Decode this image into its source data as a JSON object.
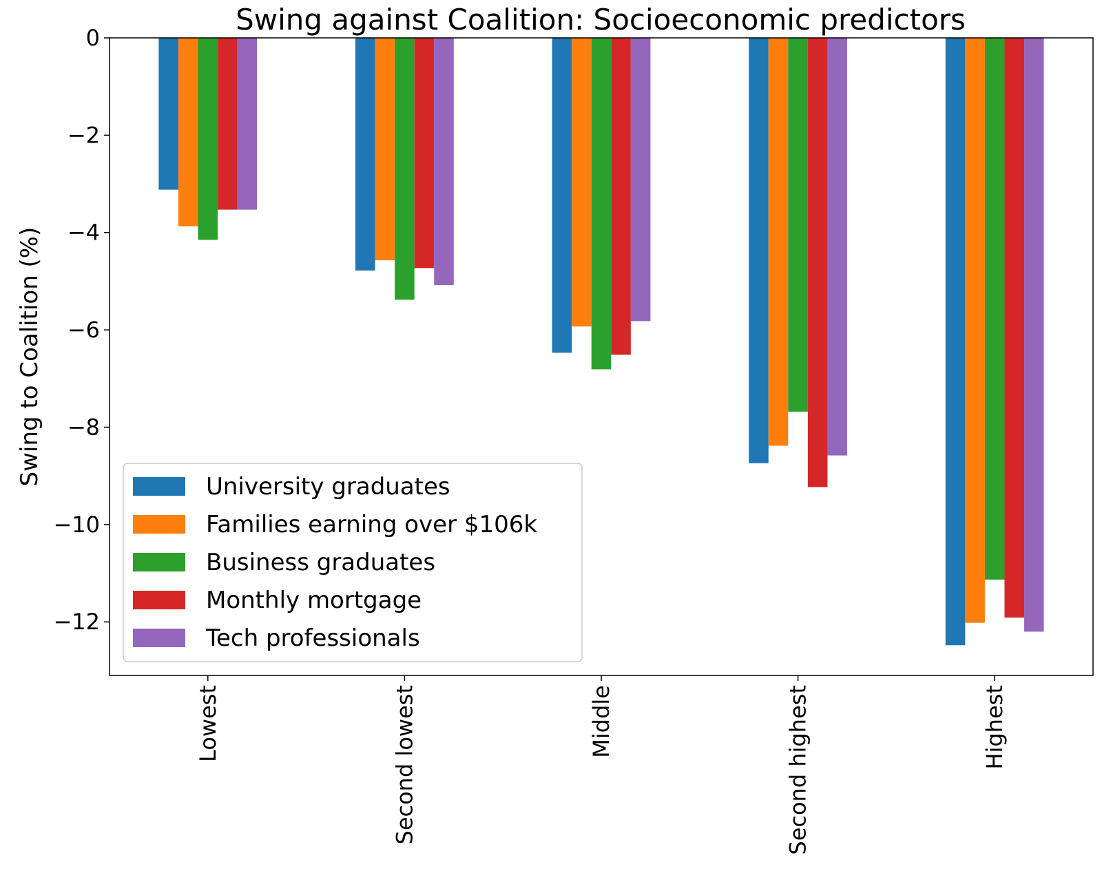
{
  "chart_data": {
    "type": "bar",
    "title": "Swing against Coalition: Socioeconomic predictors",
    "xlabel": "",
    "ylabel": "Swing to Coalition (%)",
    "ylim": [
      -13.1,
      0
    ],
    "yticks": [
      0,
      -2,
      -4,
      -6,
      -8,
      -10,
      -12
    ],
    "ytick_labels": [
      "0",
      "−2",
      "−4",
      "−6",
      "−8",
      "−10",
      "−12"
    ],
    "grid": false,
    "legend_position": "lower-left",
    "categories": [
      "Lowest",
      "Second lowest",
      "Middle",
      "Second highest",
      "Highest"
    ],
    "series": [
      {
        "name": "University graduates",
        "color": "#1f77b4",
        "values": [
          -3.12,
          -4.78,
          -6.47,
          -8.74,
          -12.48
        ]
      },
      {
        "name": "Families earning over $106k",
        "color": "#ff7f0e",
        "values": [
          -3.87,
          -4.57,
          -5.93,
          -8.38,
          -12.02
        ]
      },
      {
        "name": "Business graduates",
        "color": "#2ca02c",
        "values": [
          -4.15,
          -5.38,
          -6.81,
          -7.68,
          -11.13
        ]
      },
      {
        "name": "Monthly mortgage",
        "color": "#d62728",
        "values": [
          -3.53,
          -4.73,
          -6.51,
          -9.23,
          -11.91
        ]
      },
      {
        "name": "Tech professionals",
        "color": "#9467bd",
        "values": [
          -3.53,
          -5.08,
          -5.82,
          -8.58,
          -12.2
        ]
      }
    ]
  }
}
